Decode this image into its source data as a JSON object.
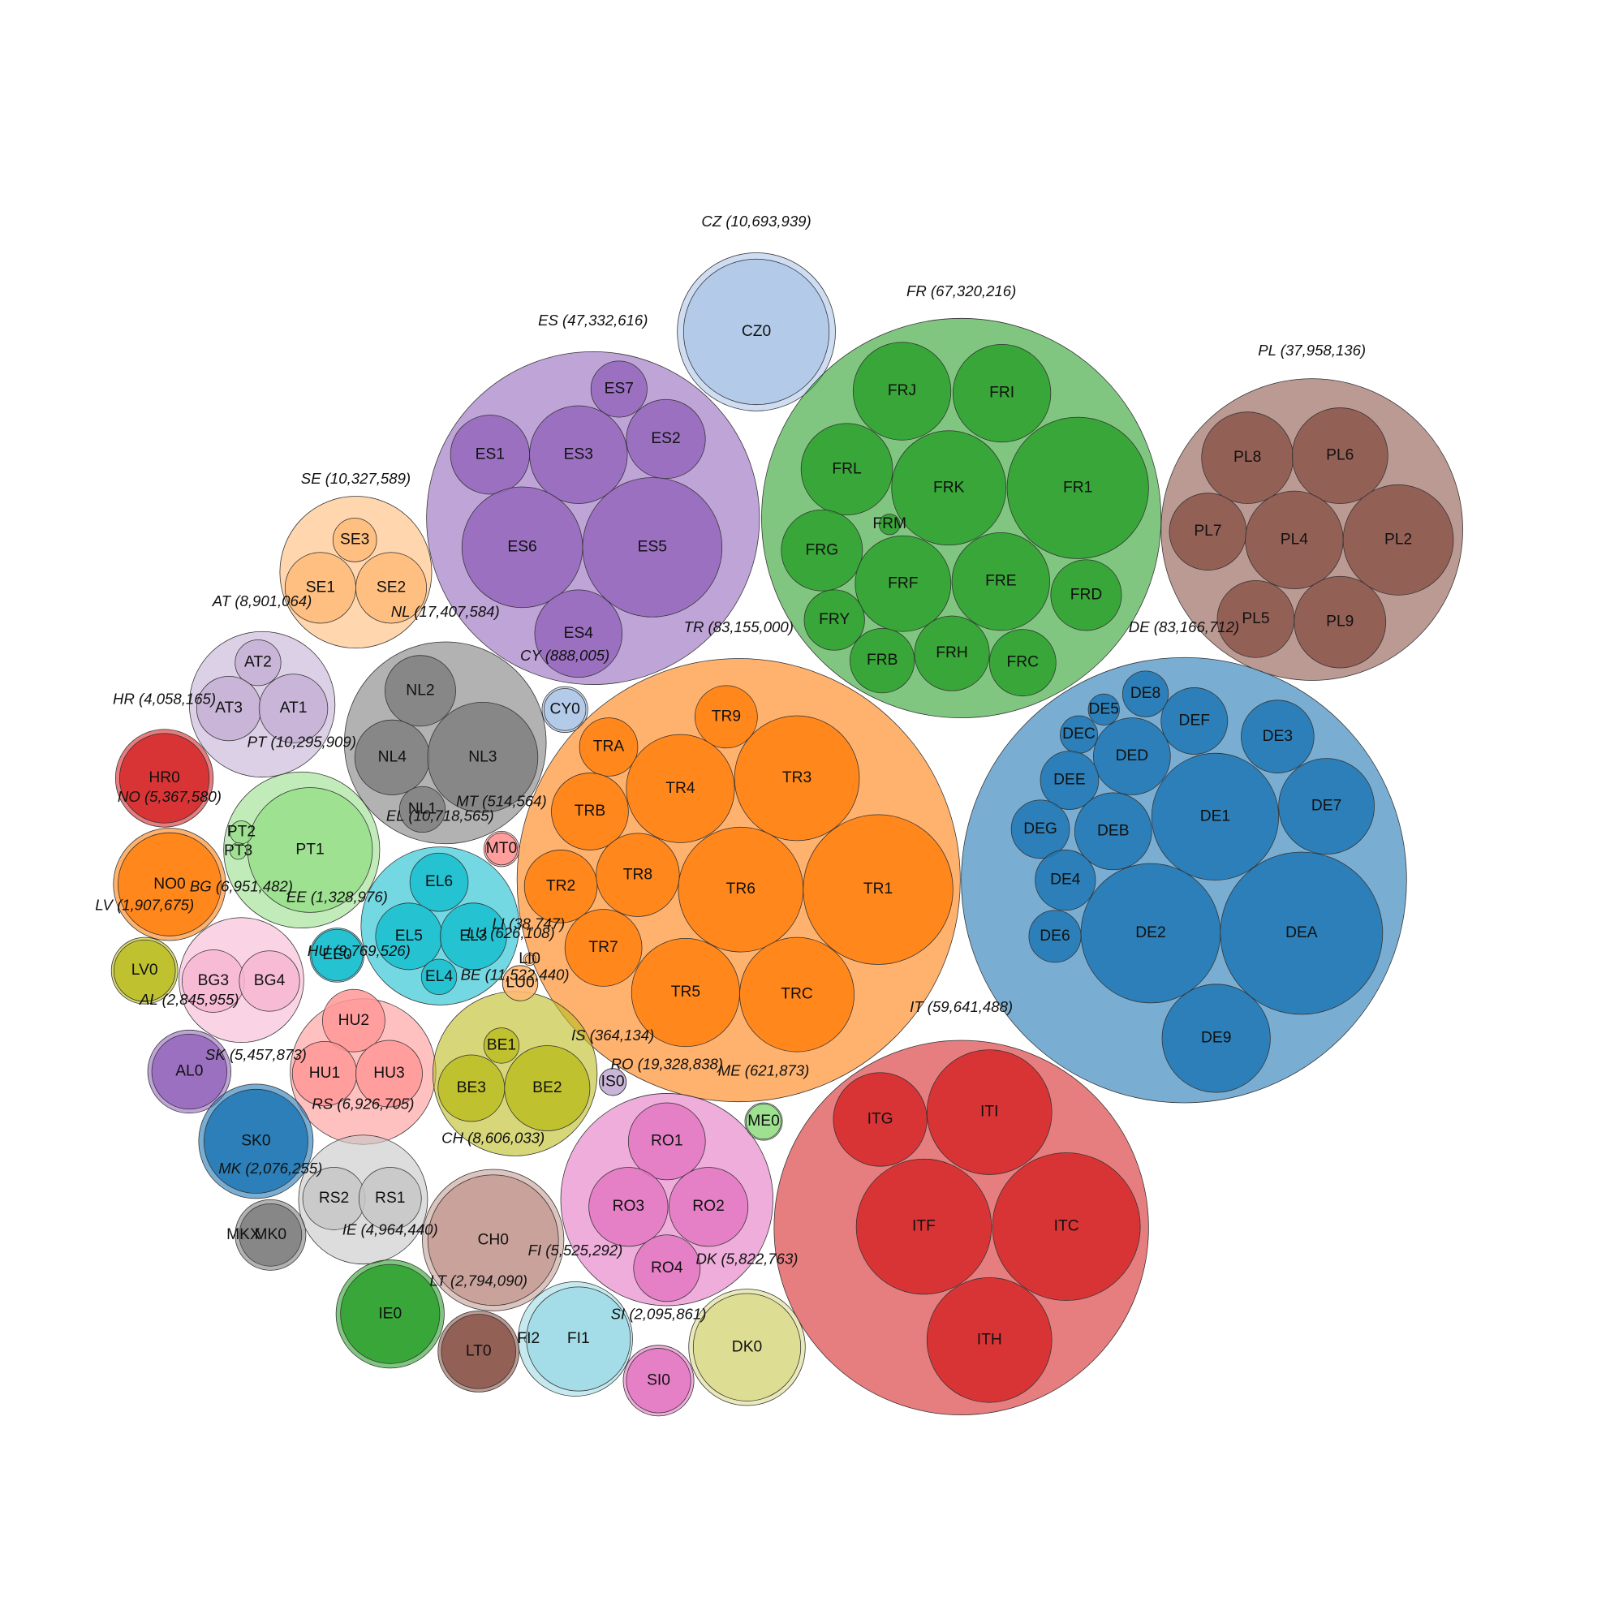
{
  "chart_data": {
    "type": "packed-bubble",
    "groups": [
      {
        "value_label": "CZ (10,693,939)",
        "value": 10693939,
        "color": "#aec7e8",
        "children": [
          {
            "name": "CZ0",
            "value": 10693939
          }
        ]
      },
      {
        "value_label": "FR (67,320,216)",
        "value": 67320216,
        "color": "#2ca02c",
        "children": [
          {
            "name": "FRJ",
            "value": 4824000
          },
          {
            "name": "FRI",
            "value": 4824000
          },
          {
            "name": "FRL",
            "value": 4228000
          },
          {
            "name": "FRK",
            "value": 6606000
          },
          {
            "name": "FR1",
            "value": 10099000
          },
          {
            "name": "FRM",
            "value": 218000
          },
          {
            "name": "FRG",
            "value": 3322000
          },
          {
            "name": "FRF",
            "value": 4621000
          },
          {
            "name": "FRE",
            "value": 4824000
          },
          {
            "name": "FRD",
            "value": 2525000
          },
          {
            "name": "FRY",
            "value": 1837000
          },
          {
            "name": "FRB",
            "value": 2099000
          },
          {
            "name": "FRH",
            "value": 2830000
          },
          {
            "name": "FRC",
            "value": 2236000
          }
        ]
      },
      {
        "value_label": "ES (47,332,616)",
        "value": 47332616,
        "color": "#9467bd",
        "children": [
          {
            "name": "ES7",
            "value": 1592000
          },
          {
            "name": "ES1",
            "value": 3154000
          },
          {
            "name": "ES3",
            "value": 4824000
          },
          {
            "name": "ES2",
            "value": 3154000
          },
          {
            "name": "ES6",
            "value": 7347000
          },
          {
            "name": "ES5",
            "value": 9804000
          },
          {
            "name": "ES4",
            "value": 3853000
          }
        ]
      },
      {
        "value_label": "PL (37,958,136)",
        "value": 37958136,
        "color": "#8c564b",
        "children": [
          {
            "name": "PL8",
            "value": 4228000
          },
          {
            "name": "PL6",
            "value": 4621000
          },
          {
            "name": "PL7",
            "value": 2990000
          },
          {
            "name": "PL4",
            "value": 4824000
          },
          {
            "name": "PL2",
            "value": 6135000
          },
          {
            "name": "PL5",
            "value": 2990000
          },
          {
            "name": "PL9",
            "value": 4228000
          }
        ]
      },
      {
        "value_label": "SE (10,327,589)",
        "value": 10327589,
        "color": "#ffbb78",
        "children": [
          {
            "name": "SE3",
            "value": 963000
          },
          {
            "name": "SE1",
            "value": 2525000
          },
          {
            "name": "SE2",
            "value": 2525000
          }
        ]
      },
      {
        "value_label": "AT (8,901,064)",
        "value": 8901064,
        "color": "#c5b0d5",
        "children": [
          {
            "name": "AT2",
            "value": 1057000
          },
          {
            "name": "AT3",
            "value": 2099000
          },
          {
            "name": "AT1",
            "value": 2378000
          }
        ]
      },
      {
        "value_label": "NL (17,407,584)",
        "value": 17407584,
        "color": "#7f7f7f",
        "children": [
          {
            "name": "NL2",
            "value": 2525000
          },
          {
            "name": "NL4",
            "value": 2830000
          },
          {
            "name": "NL3",
            "value": 6135000
          },
          {
            "name": "NL1",
            "value": 1057000
          }
        ]
      },
      {
        "value_label": "CY (888,005)",
        "value": 888005,
        "color": "#aec7e8",
        "children": [
          {
            "name": "CY0",
            "value": 888005
          }
        ]
      },
      {
        "value_label": "TR (83,155,000)",
        "value": 83155000,
        "color": "#ff7f0e",
        "children": [
          {
            "name": "TR9",
            "value": 1966000
          },
          {
            "name": "TRA",
            "value": 1712000
          },
          {
            "name": "TR4",
            "value": 5906000
          },
          {
            "name": "TR3",
            "value": 7862000
          },
          {
            "name": "TRB",
            "value": 2990000
          },
          {
            "name": "TR8",
            "value": 3494000
          },
          {
            "name": "TR6",
            "value": 7862000
          },
          {
            "name": "TR1",
            "value": 11322000
          },
          {
            "name": "TR2",
            "value": 2675000
          },
          {
            "name": "TR7",
            "value": 2990000
          },
          {
            "name": "TR5",
            "value": 5906000
          },
          {
            "name": "TRC",
            "value": 6606000
          }
        ]
      },
      {
        "value_label": "DE (83,166,712)",
        "value": 83166712,
        "color": "#1f77b4",
        "children": [
          {
            "name": "DE8",
            "value": 1057000
          },
          {
            "name": "DE5",
            "value": 491000
          },
          {
            "name": "DEC",
            "value": 708000
          },
          {
            "name": "DEF",
            "value": 2236000
          },
          {
            "name": "DE3",
            "value": 2675000
          },
          {
            "name": "DED",
            "value": 2990000
          },
          {
            "name": "DEE",
            "value": 1712000
          },
          {
            "name": "DE1",
            "value": 8127000
          },
          {
            "name": "DE7",
            "value": 4621000
          },
          {
            "name": "DEG",
            "value": 1712000
          },
          {
            "name": "DEB",
            "value": 2990000
          },
          {
            "name": "DE4",
            "value": 1837000
          },
          {
            "name": "DE2",
            "value": 9804000
          },
          {
            "name": "DEA",
            "value": 13287000
          },
          {
            "name": "DE6",
            "value": 1365000
          },
          {
            "name": "DE9",
            "value": 5906000
          }
        ]
      },
      {
        "value_label": "IT (59,641,488)",
        "value": 59641488,
        "color": "#d62728",
        "children": [
          {
            "name": "ITG",
            "value": 4423000
          },
          {
            "name": "ITI",
            "value": 7862000
          },
          {
            "name": "ITF",
            "value": 9227000
          },
          {
            "name": "ITC",
            "value": 11010000
          },
          {
            "name": "ITH",
            "value": 7862000
          }
        ]
      },
      {
        "value_label": "HR (4,058,165)",
        "value": 4058165,
        "color": "#d62728",
        "children": [
          {
            "name": "HR0",
            "value": 4058165
          }
        ]
      },
      {
        "value_label": "NO (5,367,580)",
        "value": 5367580,
        "color": "#ff7f0e",
        "children": [
          {
            "name": "NO0",
            "value": 5367580
          }
        ]
      },
      {
        "value_label": "PT (10,295,909)",
        "value": 10295909,
        "color": "#98df8a",
        "children": [
          {
            "name": "PT1",
            "value": 7862000
          },
          {
            "name": "PT2",
            "value": 264000
          },
          {
            "name": "PT3",
            "value": 140000
          }
        ]
      },
      {
        "value_label": "EL (10,718,565)",
        "value": 10718565,
        "color": "#17becf",
        "children": [
          {
            "name": "EL6",
            "value": 1712000
          },
          {
            "name": "EL5",
            "value": 2236000
          },
          {
            "name": "EL3",
            "value": 2236000
          },
          {
            "name": "EL4",
            "value": 631000
          }
        ]
      },
      {
        "value_label": "MT (514,564)",
        "value": 514564,
        "color": "#ff9896",
        "children": [
          {
            "name": "MT0",
            "value": 514564
          }
        ]
      },
      {
        "value_label": "EE (1,328,976)",
        "value": 1328976,
        "color": "#17becf",
        "children": [
          {
            "name": "EE0",
            "value": 1328976
          }
        ]
      },
      {
        "value_label": "LV (1,907,675)",
        "value": 1907675,
        "color": "#bcbd22",
        "children": [
          {
            "name": "LV0",
            "value": 1907675
          }
        ]
      },
      {
        "value_label": "BG (6,951,482)",
        "value": 6951482,
        "color": "#f7b6d2",
        "children": [
          {
            "name": "BG3",
            "value": 1966000
          },
          {
            "name": "BG4",
            "value": 1837000
          }
        ]
      },
      {
        "value_label": "HU (9,769,526)",
        "value": 9769526,
        "color": "#ff9896",
        "children": [
          {
            "name": "HU2",
            "value": 1966000
          },
          {
            "name": "HU1",
            "value": 2099000
          },
          {
            "name": "HU3",
            "value": 2236000
          }
        ]
      },
      {
        "value_label": "LI (38,747)",
        "value": 38747,
        "color": "#ffbb78",
        "children": [
          {
            "name": "LI0",
            "value": 38747
          }
        ]
      },
      {
        "value_label": "LU (626,108)",
        "value": 626108,
        "color": "#ffbb78",
        "children": [
          {
            "name": "LU0",
            "value": 626108
          }
        ]
      },
      {
        "value_label": "BE (11,522,440)",
        "value": 11522440,
        "color": "#bcbd22",
        "children": [
          {
            "name": "BE1",
            "value": 631000
          },
          {
            "name": "BE3",
            "value": 2236000
          },
          {
            "name": "BE2",
            "value": 3671000
          }
        ]
      },
      {
        "value_label": "AL (2,845,955)",
        "value": 2845955,
        "color": "#9467bd",
        "children": [
          {
            "name": "AL0",
            "value": 2845955
          }
        ]
      },
      {
        "value_label": "SK (5,457,873)",
        "value": 5457873,
        "color": "#1f77b4",
        "children": [
          {
            "name": "SK0",
            "value": 5457873
          }
        ]
      },
      {
        "value_label": "IS (364,134)",
        "value": 364134,
        "color": "#c5b0d5",
        "children": [
          {
            "name": "IS0",
            "value": 364134
          }
        ]
      },
      {
        "value_label": "RO (19,328,838)",
        "value": 19328838,
        "color": "#e377c2",
        "children": [
          {
            "name": "RO1",
            "value": 2990000
          },
          {
            "name": "RO3",
            "value": 3154000
          },
          {
            "name": "RO2",
            "value": 3154000
          },
          {
            "name": "RO4",
            "value": 2236000
          }
        ]
      },
      {
        "value_label": "ME (621,873)",
        "value": 621873,
        "color": "#98df8a",
        "children": [
          {
            "name": "ME0",
            "value": 621873
          }
        ]
      },
      {
        "value_label": "RS (6,926,705)",
        "value": 6926705,
        "color": "#c7c7c7",
        "children": [
          {
            "name": "RS2",
            "value": 1966000
          },
          {
            "name": "RS1",
            "value": 1966000
          }
        ]
      },
      {
        "value_label": "CH (8,606,033)",
        "value": 8606033,
        "color": "#c49c94",
        "children": [
          {
            "name": "CH0",
            "value": 8606033
          }
        ]
      },
      {
        "value_label": "MK (2,076,255)",
        "value": 2076255,
        "color": "#7f7f7f",
        "children": [
          {
            "name": "MKX",
            "value": 35000
          },
          {
            "name": "MK0",
            "value": 1966000
          }
        ]
      },
      {
        "value_label": "IE (4,964,440)",
        "value": 4964440,
        "color": "#2ca02c",
        "children": [
          {
            "name": "IE0",
            "value": 4964440
          }
        ]
      },
      {
        "value_label": "LT (2,794,090)",
        "value": 2794090,
        "color": "#8c564b",
        "children": [
          {
            "name": "LT0",
            "value": 2794090
          }
        ]
      },
      {
        "value_label": "FI (5,525,292)",
        "value": 5525292,
        "color": "#9edae5",
        "children": [
          {
            "name": "FI2",
            "value": 35000
          },
          {
            "name": "FI1",
            "value": 5460000
          }
        ]
      },
      {
        "value_label": "SI (2,095,861)",
        "value": 2095861,
        "color": "#e377c2",
        "children": [
          {
            "name": "SI0",
            "value": 2095861
          }
        ]
      },
      {
        "value_label": "DK (5,822,763)",
        "value": 5822763,
        "color": "#dbdb8d",
        "children": [
          {
            "name": "DK0",
            "value": 5822763
          }
        ]
      }
    ]
  }
}
